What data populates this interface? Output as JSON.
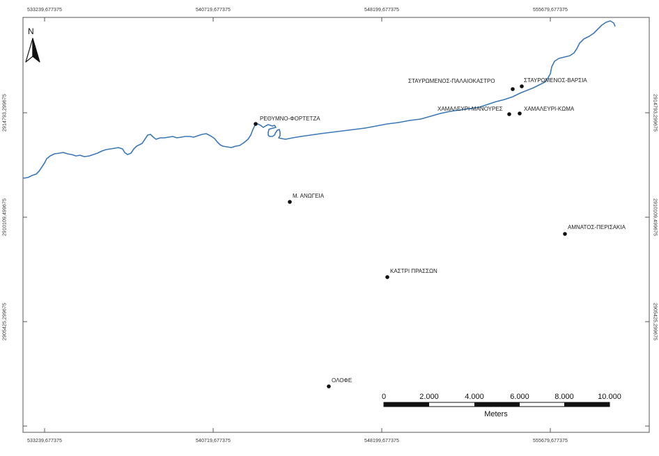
{
  "coordinates": {
    "top": [
      "533239,677375",
      "540719,677375",
      "548199,677375",
      "555679,677375"
    ],
    "bottom": [
      "533239,677375",
      "540719,677375",
      "548199,677375",
      "555679,677375"
    ],
    "left": [
      "2914793,299675",
      "2910109,499675",
      "2905425,299675"
    ],
    "right": [
      "2914793,299675",
      "2910109,499675",
      "2905425,299675"
    ]
  },
  "places": [
    {
      "name": "ΣΤΑΥΡΩΜΕΝΟΣ-ΠΑΛΑΙΟΚΑΣΤΡΟ"
    },
    {
      "name": "ΣΤΑΥΡΩΜΕΝΟΣ-ΒΑΡΣΙΑ"
    },
    {
      "name": "ΧΑΜΑΛΕΥΡΙ-ΜΑΝΟΥΡΕΣ"
    },
    {
      "name": "ΧΑΜΑΛΕΥΡΙ-ΚΩΜΑ"
    },
    {
      "name": "ΡΕΘΥΜΝΟ-ΦΟΡΤΕΤΖΑ"
    },
    {
      "name": "Μ. ΑΝΩΓΕΙΑ"
    },
    {
      "name": "ΑΜΝΑΤΟΣ-ΠΕΡΙΣΑΚΙΑ"
    },
    {
      "name": "ΚΑΣΤΡΙ ΠΡΑΣΣΩΝ"
    },
    {
      "name": "ΟΛΟΦΕ"
    }
  ],
  "north_arrow": {
    "letter": "N",
    "icon": "north-arrow-icon"
  },
  "scale_bar": {
    "ticks": [
      "0",
      "2.000",
      "4.000",
      "6.000",
      "8.000",
      "10.000"
    ],
    "unit": "Meters"
  },
  "colors": {
    "coastline": "#3a78b8",
    "site": "#111111",
    "frame": "#555555"
  }
}
